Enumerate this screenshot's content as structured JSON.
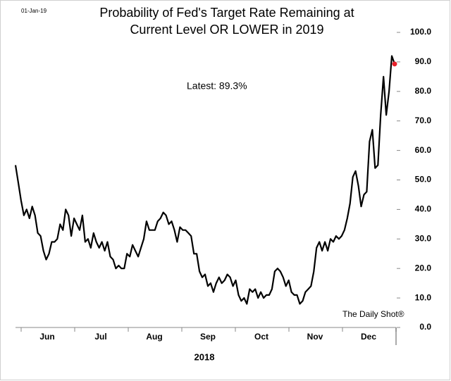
{
  "chart_data": {
    "type": "line",
    "date_stamp": "01-Jan-19",
    "title": [
      "Probability of Fed's Target Rate Remaining at",
      "Current Level OR LOWER in 2019"
    ],
    "annotation": "Latest:  89.3%",
    "source": "The Daily Shot®",
    "x_label": "2018",
    "months": [
      "Jun",
      "Jul",
      "Aug",
      "Sep",
      "Oct",
      "Nov",
      "Dec"
    ],
    "color": "#000000",
    "latest_color": "#e8202a",
    "ylim": [
      0,
      100
    ],
    "yticks": [
      {
        "value": 0,
        "label": "0.0"
      },
      {
        "value": 10,
        "label": "10.0"
      },
      {
        "value": 20,
        "label": "20.0"
      },
      {
        "value": 30,
        "label": "30.0"
      },
      {
        "value": 40,
        "label": "40.0"
      },
      {
        "value": 50,
        "label": "50.0"
      },
      {
        "value": 60,
        "label": "60.0"
      },
      {
        "value": 70,
        "label": "70.0"
      },
      {
        "value": 80,
        "label": "80.0"
      },
      {
        "value": 90,
        "label": "90.0"
      },
      {
        "value": 100,
        "label": "100.0"
      }
    ],
    "values": [
      55,
      49,
      43,
      38,
      40,
      37,
      41,
      38,
      32,
      31,
      26,
      23,
      25,
      29,
      29,
      30,
      35,
      33,
      40,
      38,
      31,
      37,
      35,
      33,
      38,
      29,
      30,
      27,
      32,
      29,
      27,
      29,
      26,
      29,
      24,
      23,
      20,
      21,
      20,
      20,
      25,
      24,
      28,
      26,
      24,
      27,
      30,
      36,
      33,
      33,
      33,
      36,
      37,
      39,
      38,
      35,
      36,
      33,
      29,
      34,
      33,
      33,
      32,
      31,
      25,
      25,
      19,
      17,
      18,
      14,
      15,
      12,
      15,
      17,
      15,
      16,
      18,
      17,
      14,
      16,
      11,
      9,
      10,
      8,
      13,
      12,
      13,
      10,
      12,
      10,
      11,
      11,
      13,
      19,
      20,
      19,
      17,
      14,
      16,
      12,
      11,
      11,
      8,
      9,
      12,
      13,
      14,
      19,
      27,
      29,
      26,
      29,
      26,
      30,
      29,
      31,
      30,
      31,
      33,
      37,
      42,
      51,
      53,
      48,
      41,
      45,
      46,
      63,
      67,
      54,
      55,
      72,
      85,
      72,
      80,
      92,
      89.3
    ]
  }
}
